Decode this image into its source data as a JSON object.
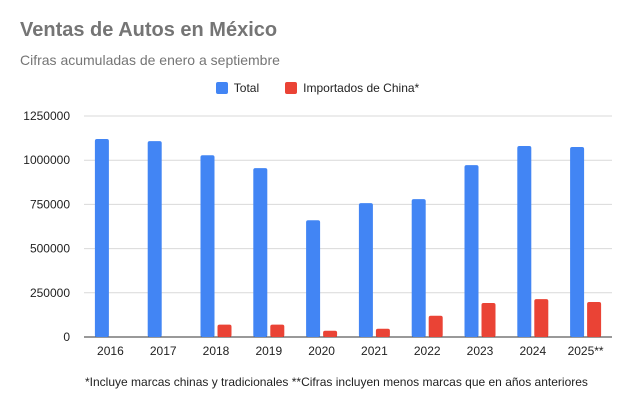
{
  "chart_data": {
    "type": "bar",
    "title": "Ventas de Autos en México",
    "subtitle": "Cifras acumuladas de enero a septiembre",
    "categories": [
      "2016",
      "2017",
      "2018",
      "2019",
      "2020",
      "2021",
      "2022",
      "2023",
      "2024",
      "2025**"
    ],
    "series": [
      {
        "name": "Total",
        "color": "#4285f4",
        "values": [
          1120000,
          1108000,
          1028000,
          955000,
          660000,
          757000,
          780000,
          972000,
          1080000,
          1075000
        ]
      },
      {
        "name": "Importados de China*",
        "color": "#ea4335",
        "values": [
          0,
          0,
          70000,
          70000,
          35000,
          47000,
          120000,
          192000,
          214000,
          198000
        ]
      }
    ],
    "yticks": [
      "0",
      "250000",
      "500000",
      "750000",
      "1000000",
      "1250000"
    ],
    "ylim": [
      0,
      1250000
    ],
    "grid": true,
    "legend": "top-center",
    "footnote": "*Incluye marcas chinas y tradicionales **Cifras incluyen menos marcas que en años anteriores"
  }
}
